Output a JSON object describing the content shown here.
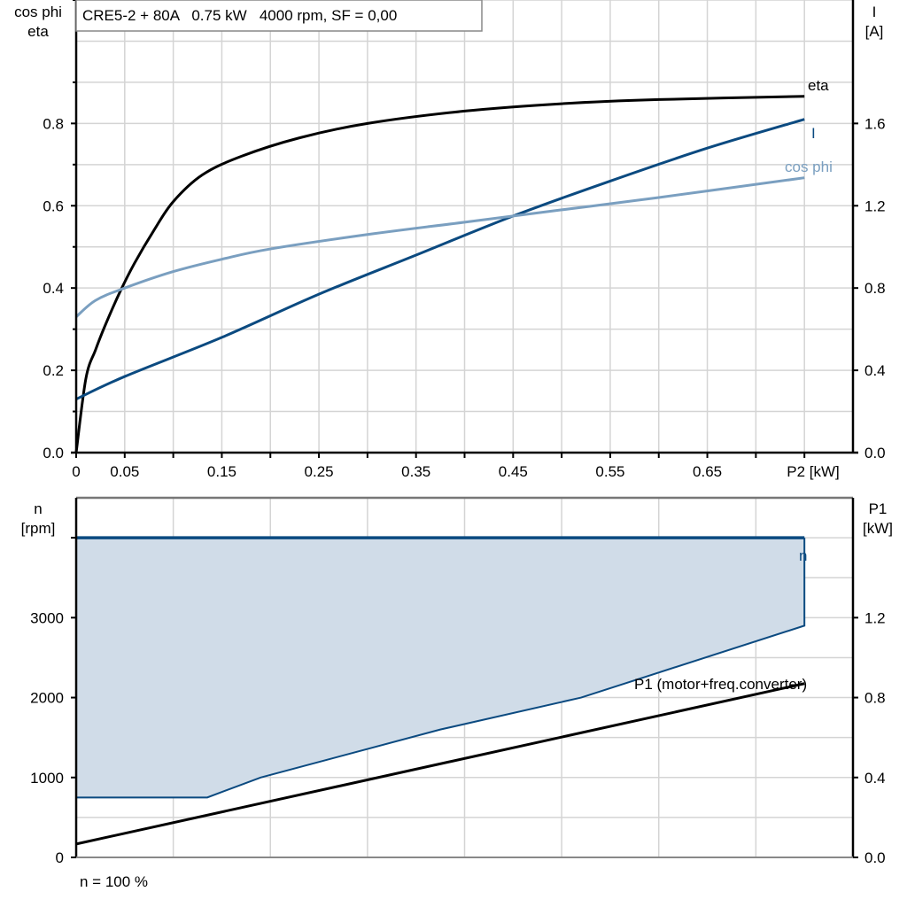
{
  "chart_data": [
    {
      "type": "line",
      "title": "CRE5-2 + 80A   0.75 kW   4000 rpm, SF = 0,00",
      "xlabel": "P2 [kW]",
      "ylabel_left": [
        "cos phi",
        "eta"
      ],
      "ylabel_right": [
        "I",
        "[A]"
      ],
      "xlim": [
        0,
        0.8
      ],
      "ylim_left": [
        0,
        1.1
      ],
      "ylim_right": [
        0,
        2.2
      ],
      "x_tick_labels": [
        "0",
        "0.05",
        "0.15",
        "0.25",
        "0.35",
        "0.45",
        "0.55",
        "0.65"
      ],
      "x_ticks": [
        0,
        0.05,
        0.15,
        0.25,
        0.35,
        0.45,
        0.55,
        0.65
      ],
      "y_left_ticks": [
        "0.0",
        "0.2",
        "0.4",
        "0.6",
        "0.8"
      ],
      "y_right_ticks": [
        "0.0",
        "0.4",
        "0.8",
        "1.2",
        "1.6"
      ],
      "grid": true,
      "series": [
        {
          "name": "eta",
          "axis": "left",
          "color": "#000000",
          "x": [
            0,
            0.01,
            0.02,
            0.03,
            0.045,
            0.06,
            0.08,
            0.1,
            0.13,
            0.17,
            0.23,
            0.3,
            0.4,
            0.5,
            0.6,
            0.75
          ],
          "y": [
            0,
            0.18,
            0.25,
            0.31,
            0.39,
            0.46,
            0.54,
            0.61,
            0.675,
            0.72,
            0.765,
            0.8,
            0.83,
            0.848,
            0.858,
            0.866
          ]
        },
        {
          "name": "I",
          "axis": "right",
          "color": "#0b4a80",
          "x": [
            0,
            0.05,
            0.15,
            0.25,
            0.35,
            0.45,
            0.55,
            0.65,
            0.75
          ],
          "y": [
            0.26,
            0.37,
            0.56,
            0.77,
            0.96,
            1.15,
            1.32,
            1.48,
            1.62
          ]
        },
        {
          "name": "cos phi",
          "axis": "left",
          "color": "#7a9fc0",
          "x": [
            0,
            0.02,
            0.05,
            0.1,
            0.15,
            0.2,
            0.3,
            0.4,
            0.5,
            0.6,
            0.75
          ],
          "y": [
            0.33,
            0.37,
            0.4,
            0.44,
            0.47,
            0.495,
            0.53,
            0.56,
            0.59,
            0.62,
            0.668
          ]
        }
      ]
    },
    {
      "type": "area",
      "xlim": [
        0,
        0.8
      ],
      "ylabel_left": [
        "n",
        "[rpm]"
      ],
      "ylabel_right": [
        "P1",
        "[kW]"
      ],
      "ylim_left": [
        0,
        4500
      ],
      "ylim_right": [
        0,
        1.8
      ],
      "y_left_ticks": [
        "0",
        "1000",
        "2000",
        "3000"
      ],
      "y_right_ticks": [
        "0.0",
        "0.4",
        "0.8",
        "1.2"
      ],
      "footnote": "n = 100 %",
      "grid": true,
      "series": [
        {
          "name": "n",
          "axis": "left",
          "color": "#0b4a80",
          "fill": "#d0dce8",
          "x": [
            0,
            0.75
          ],
          "y": [
            4000,
            4000
          ],
          "lower_x": [
            0,
            0.135,
            0.19,
            0.375,
            0.52,
            0.75
          ],
          "lower_y": [
            750,
            750,
            1000,
            1600,
            2000,
            2900
          ]
        },
        {
          "name": "P1 (motor+freq.converter)",
          "axis": "right",
          "color": "#000000",
          "x": [
            0,
            0.75
          ],
          "y": [
            0.067,
            0.87
          ]
        }
      ]
    }
  ]
}
